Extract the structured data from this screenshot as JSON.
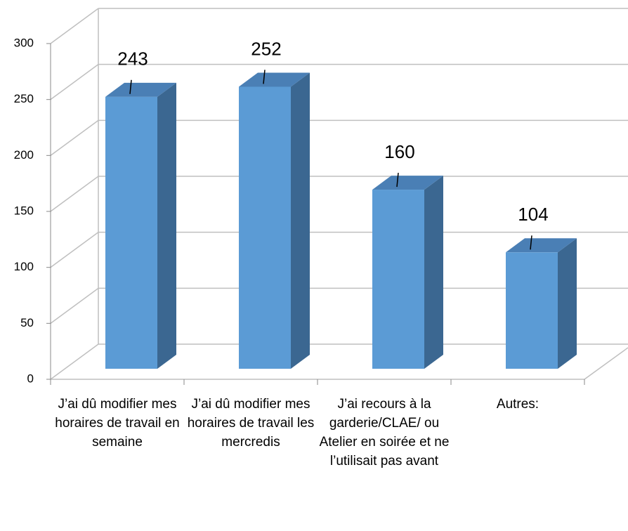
{
  "chart_data": {
    "type": "bar3d",
    "categories": [
      "J’ai dû modifier mes horaires de travail en semaine",
      "J’ai dû modifier mes horaires de travail les mercredis",
      "J’ai recours à la garderie/CLAE/ ou Atelier en soirée et ne l’utilisait pas avant",
      "Autres:"
    ],
    "values": [
      243,
      252,
      160,
      104
    ],
    "color": "#5b9bd5",
    "ylim": [
      0,
      300
    ],
    "yticks": [
      0,
      50,
      100,
      150,
      200,
      250,
      300
    ],
    "grid": true
  }
}
